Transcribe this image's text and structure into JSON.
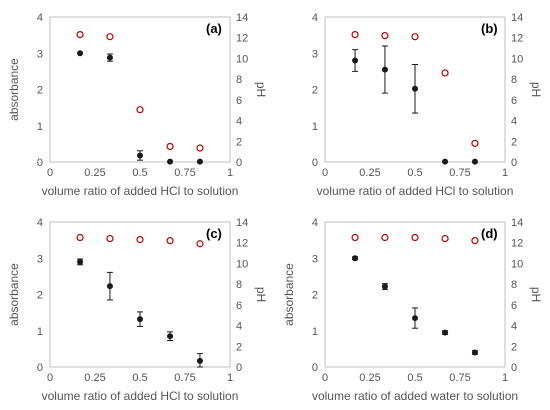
{
  "colors": {
    "absorbance": "#1a1a1a",
    "ph": "#c00000",
    "axis": "#bfbfbf",
    "text": "#555555"
  },
  "chart_data": [
    {
      "type": "scatter",
      "panel_label": "(a)",
      "xlabel": "volume ratio of added HCl to solution",
      "ylabel": "absorbance",
      "y2label": "pH",
      "xlim": [
        0,
        1
      ],
      "ylim": [
        0,
        4
      ],
      "y2lim": [
        0,
        14
      ],
      "xticks": [
        "0",
        "0.25",
        "0.5",
        "0.75",
        "1"
      ],
      "yticks": [
        "0",
        "1",
        "2",
        "3",
        "4"
      ],
      "y2ticks": [
        "0",
        "2",
        "4",
        "6",
        "8",
        "10",
        "12",
        "14"
      ],
      "series": [
        {
          "axis": "left",
          "marker": "filled-circle",
          "x": [
            0.167,
            0.333,
            0.5,
            0.667,
            0.833
          ],
          "y": [
            3.0,
            2.88,
            0.18,
            0.01,
            0.01
          ],
          "err": [
            0.0,
            0.1,
            0.13,
            0.0,
            0.0
          ]
        },
        {
          "axis": "right",
          "marker": "open-circle",
          "x": [
            0.167,
            0.333,
            0.5,
            0.667,
            0.833
          ],
          "y": [
            12.3,
            12.1,
            5.05,
            1.5,
            1.35
          ]
        }
      ]
    },
    {
      "type": "scatter",
      "panel_label": "(b)",
      "xlabel": "volume ratio of added HCl to solution",
      "ylabel": "",
      "y2label": "pH",
      "xlim": [
        0,
        1
      ],
      "ylim": [
        0,
        4
      ],
      "y2lim": [
        0,
        14
      ],
      "xticks": [
        "0",
        "0.25",
        "0.5",
        "0.75",
        "1"
      ],
      "yticks": [
        "0",
        "1",
        "2",
        "3",
        "4"
      ],
      "y2ticks": [
        "0",
        "2",
        "4",
        "6",
        "8",
        "10",
        "12",
        "14"
      ],
      "series": [
        {
          "axis": "left",
          "marker": "filled-circle",
          "x": [
            0.167,
            0.333,
            0.5,
            0.667,
            0.833
          ],
          "y": [
            2.8,
            2.55,
            2.02,
            0.01,
            0.01
          ],
          "err": [
            0.3,
            0.65,
            0.67,
            0.0,
            0.0
          ]
        },
        {
          "axis": "right",
          "marker": "open-circle",
          "x": [
            0.167,
            0.333,
            0.5,
            0.667,
            0.833
          ],
          "y": [
            12.3,
            12.2,
            12.1,
            8.6,
            1.8
          ]
        }
      ]
    },
    {
      "type": "scatter",
      "panel_label": "(c)",
      "xlabel": "volume ratio of added HCl to solution",
      "ylabel": "absorbance",
      "y2label": "pH",
      "xlim": [
        0,
        1
      ],
      "ylim": [
        0,
        4
      ],
      "y2lim": [
        0,
        14
      ],
      "xticks": [
        "0",
        "0.25",
        "0.5",
        "0.75",
        "1"
      ],
      "yticks": [
        "0",
        "1",
        "2",
        "3",
        "4"
      ],
      "y2ticks": [
        "0",
        "2",
        "4",
        "6",
        "8",
        "10",
        "12",
        "14"
      ],
      "series": [
        {
          "axis": "left",
          "marker": "filled-circle",
          "x": [
            0.167,
            0.333,
            0.5,
            0.667,
            0.833
          ],
          "y": [
            2.9,
            2.23,
            1.32,
            0.85,
            0.17
          ],
          "err": [
            0.08,
            0.38,
            0.2,
            0.12,
            0.2
          ]
        },
        {
          "axis": "right",
          "marker": "open-circle",
          "x": [
            0.167,
            0.333,
            0.5,
            0.667,
            0.833
          ],
          "y": [
            12.5,
            12.4,
            12.3,
            12.2,
            11.9
          ]
        }
      ]
    },
    {
      "type": "scatter",
      "panel_label": "(d)",
      "xlabel": "volume ratio of added water to solution",
      "ylabel": "absorbance",
      "y2label": "pH",
      "xlim": [
        0,
        1
      ],
      "ylim": [
        0,
        4
      ],
      "y2lim": [
        0,
        14
      ],
      "xticks": [
        "0",
        "0.25",
        "0.5",
        "0.75",
        "1"
      ],
      "yticks": [
        "0",
        "1",
        "2",
        "3",
        "4"
      ],
      "y2ticks": [
        "0",
        "2",
        "4",
        "6",
        "8",
        "10",
        "12",
        "14"
      ],
      "series": [
        {
          "axis": "left",
          "marker": "filled-circle",
          "x": [
            0.167,
            0.333,
            0.5,
            0.667,
            0.833
          ],
          "y": [
            3.0,
            2.22,
            1.35,
            0.95,
            0.4
          ],
          "err": [
            0.04,
            0.08,
            0.28,
            0.05,
            0.05
          ]
        },
        {
          "axis": "right",
          "marker": "open-circle",
          "x": [
            0.167,
            0.333,
            0.5,
            0.667,
            0.833
          ],
          "y": [
            12.5,
            12.5,
            12.5,
            12.4,
            12.2
          ]
        }
      ]
    }
  ]
}
